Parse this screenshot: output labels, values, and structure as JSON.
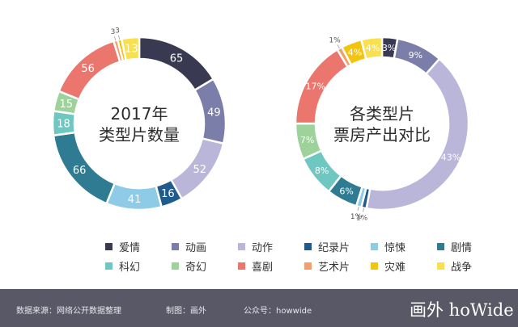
{
  "colors": {
    "爱情": "#393a51",
    "动画": "#7b7ea8",
    "动作": "#b9b6d9",
    "纪录片": "#1f5b8c",
    "惊悚": "#8ecbe7",
    "剧情": "#2f7c92",
    "科幻": "#6ec7c1",
    "奇幻": "#9dd29a",
    "喜剧": "#ea766d",
    "艺术片": "#f1a06b",
    "灾难": "#f2c30f",
    "战争": "#f8e04f"
  },
  "chart_data": [
    {
      "type": "pie",
      "title": "2017年 类型片数量",
      "title_lines": [
        "2017年",
        "类型片数量"
      ],
      "slices": [
        {
          "label": "爱情",
          "value": 65,
          "text": "65"
        },
        {
          "label": "动画",
          "value": 49,
          "text": "49"
        },
        {
          "label": "动作",
          "value": 52,
          "text": "52"
        },
        {
          "label": "纪录片",
          "value": 16,
          "text": "16"
        },
        {
          "label": "惊悚",
          "value": 41,
          "text": "41"
        },
        {
          "label": "剧情",
          "value": 66,
          "text": "66"
        },
        {
          "label": "科幻",
          "value": 18,
          "text": "18"
        },
        {
          "label": "奇幻",
          "value": 15,
          "text": "15"
        },
        {
          "label": "喜剧",
          "value": 56,
          "text": "56"
        },
        {
          "label": "艺术片",
          "value": 3,
          "text": "3"
        },
        {
          "label": "灾难",
          "value": 3,
          "text": "3"
        },
        {
          "label": "战争",
          "value": 13,
          "text": "13"
        }
      ]
    },
    {
      "type": "pie",
      "title": "各类型片 票房产出对比",
      "title_lines": [
        "各类型片",
        "票房产出对比"
      ],
      "slices": [
        {
          "label": "爱情",
          "value": 3,
          "text": "3%"
        },
        {
          "label": "动画",
          "value": 9,
          "text": "9%"
        },
        {
          "label": "动作",
          "value": 43,
          "text": "43%"
        },
        {
          "label": "纪录片",
          "value": 1,
          "text": "1%"
        },
        {
          "label": "惊悚",
          "value": 1,
          "text": "1%"
        },
        {
          "label": "剧情",
          "value": 6,
          "text": "6%"
        },
        {
          "label": "科幻",
          "value": 8,
          "text": "8%"
        },
        {
          "label": "奇幻",
          "value": 7,
          "text": "7%"
        },
        {
          "label": "喜剧",
          "value": 17,
          "text": "17%"
        },
        {
          "label": "艺术片",
          "value": 1,
          "text": "1%"
        },
        {
          "label": "灾难",
          "value": 4,
          "text": "4%"
        },
        {
          "label": "战争",
          "value": 4,
          "text": "4%"
        }
      ]
    }
  ],
  "legend": {
    "row1": [
      "爱情",
      "动画",
      "动作",
      "纪录片",
      "惊悚",
      "剧情"
    ],
    "row2": [
      "科幻",
      "奇幻",
      "喜剧",
      "艺术片",
      "灾难",
      "战争"
    ]
  },
  "footer": {
    "source": "数据来源：网络公开数据整理",
    "maker": "制图：画外",
    "account": "公众号：howwide",
    "logo": "画外 hoWide"
  }
}
